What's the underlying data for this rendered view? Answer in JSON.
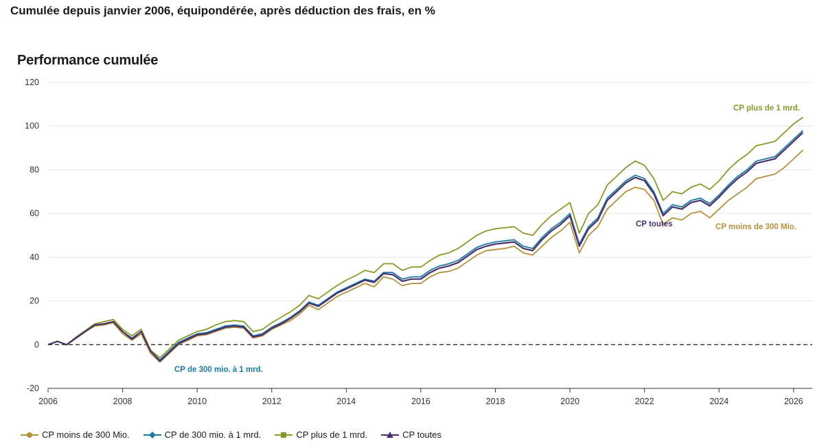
{
  "header": {
    "subtitle": "Cumulée depuis janvier 2006, équipondérée, après déduction des frais, en %",
    "title": "Performance cumulée"
  },
  "chart_data": {
    "type": "line",
    "title": "Performance cumulée",
    "xlim": [
      2006,
      2026.5
    ],
    "ylim": [
      -20,
      120
    ],
    "y_ticks": [
      -20,
      0,
      20,
      40,
      60,
      80,
      100,
      120
    ],
    "x_ticks": [
      2006,
      2008,
      2010,
      2012,
      2014,
      2016,
      2018,
      2020,
      2022,
      2024,
      2026
    ],
    "grid": "horizontal",
    "legend_position": "bottom",
    "x": [
      2006.0,
      2006.25,
      2006.5,
      2006.75,
      2007.0,
      2007.25,
      2007.5,
      2007.75,
      2008.0,
      2008.25,
      2008.5,
      2008.75,
      2009.0,
      2009.25,
      2009.5,
      2009.75,
      2010.0,
      2010.25,
      2010.5,
      2010.75,
      2011.0,
      2011.25,
      2011.5,
      2011.75,
      2012.0,
      2012.25,
      2012.5,
      2012.75,
      2013.0,
      2013.25,
      2013.5,
      2013.75,
      2014.0,
      2014.25,
      2014.5,
      2014.75,
      2015.0,
      2015.25,
      2015.5,
      2015.75,
      2016.0,
      2016.25,
      2016.5,
      2016.75,
      2017.0,
      2017.25,
      2017.5,
      2017.75,
      2018.0,
      2018.25,
      2018.5,
      2018.75,
      2019.0,
      2019.25,
      2019.5,
      2019.75,
      2020.0,
      2020.25,
      2020.5,
      2020.75,
      2021.0,
      2021.25,
      2021.5,
      2021.75,
      2022.0,
      2022.25,
      2022.5,
      2022.75,
      2023.0,
      2023.25,
      2023.5,
      2023.75,
      2024.0,
      2024.25,
      2024.5,
      2024.75,
      2025.0,
      2025.25,
      2025.5,
      2025.75,
      2026.0,
      2026.25
    ],
    "series": [
      {
        "name": "CP moins de 300 Mio.",
        "color": "#b5903a",
        "marker": "circle",
        "values": [
          0,
          1.5,
          0,
          3,
          6,
          8.5,
          9,
          10,
          5,
          2,
          5,
          -4,
          -8,
          -4,
          0,
          2,
          4,
          4.5,
          6,
          7.5,
          8,
          7.5,
          3,
          4,
          7,
          9,
          11,
          14,
          18,
          16,
          19,
          22,
          24,
          26,
          28,
          26.5,
          31,
          30,
          27,
          28,
          28,
          31,
          33,
          33.5,
          35,
          38,
          41,
          43,
          43.5,
          44,
          45,
          42,
          41,
          45,
          49,
          52,
          56,
          42,
          50,
          54,
          62,
          66,
          70,
          72,
          71,
          66,
          55,
          58,
          57,
          60,
          61,
          58,
          62,
          66,
          69,
          72,
          76,
          77,
          78,
          81,
          85,
          89
        ]
      },
      {
        "name": "CP de 300 mio. à 1 mrd.",
        "color": "#1b7aa3",
        "marker": "diamond",
        "values": [
          0,
          1.5,
          0,
          3,
          6,
          9,
          9.5,
          10.5,
          6,
          3,
          6,
          -3,
          -7,
          -3,
          1,
          3,
          5,
          5.5,
          7,
          8.5,
          9,
          8.5,
          4,
          5,
          8,
          10,
          12.5,
          15.5,
          19.5,
          18,
          21,
          24,
          26,
          28,
          30,
          29,
          33,
          33,
          30,
          31,
          31,
          34,
          36,
          37,
          38.5,
          41.5,
          44.5,
          46,
          47,
          47.5,
          48,
          45,
          44,
          49,
          53,
          56,
          60,
          46,
          54,
          58,
          67,
          71,
          75,
          77.5,
          76,
          70,
          60,
          64,
          63,
          66,
          67,
          64.5,
          68.5,
          73,
          77,
          80,
          84,
          85,
          86,
          90,
          94,
          98
        ]
      },
      {
        "name": "CP plus de 1 mrd.",
        "color": "#869a2a",
        "marker": "square",
        "values": [
          0,
          1.5,
          0,
          3.5,
          6.5,
          9.5,
          10.5,
          11.5,
          7,
          4,
          7,
          -2.5,
          -6,
          -2,
          2,
          4,
          6,
          7,
          9,
          10.5,
          11,
          10.5,
          6,
          7,
          10,
          12.5,
          15,
          18,
          22.5,
          21,
          24,
          27,
          29.5,
          31.5,
          34,
          33,
          37,
          37,
          34,
          35.5,
          35.5,
          38.5,
          41,
          42,
          44,
          47,
          50,
          52,
          53,
          53.5,
          54,
          51,
          50,
          55,
          59,
          62,
          65,
          51,
          60,
          64,
          73,
          77,
          81,
          84,
          82,
          76,
          66,
          70,
          69,
          72,
          73.5,
          71,
          75,
          80,
          84,
          87,
          91,
          92,
          93,
          97,
          101,
          104
        ]
      },
      {
        "name": "CP toutes",
        "color": "#4b2f6b",
        "marker": "triangle",
        "values": [
          0,
          1.5,
          0,
          3,
          6,
          9,
          9.5,
          10.5,
          6,
          2.5,
          6,
          -3,
          -7.5,
          -3.5,
          0.5,
          2.5,
          4.5,
          5,
          6.5,
          8,
          8.5,
          8,
          3.5,
          4.5,
          7.5,
          9.5,
          12,
          15,
          19,
          17.5,
          20.5,
          23.5,
          25.5,
          27.5,
          29.5,
          28.5,
          32.5,
          32,
          29,
          30,
          30,
          33,
          35,
          36,
          37.5,
          40.5,
          43.5,
          45,
          46,
          46.5,
          47,
          44,
          43,
          48,
          52,
          55,
          59,
          45,
          53,
          57,
          66,
          70,
          74,
          76.5,
          75,
          69,
          59,
          63,
          62,
          65,
          66,
          63.5,
          67.5,
          72,
          76,
          79,
          83,
          84,
          85,
          89,
          93,
          97
        ]
      }
    ],
    "annotations": [
      {
        "text": "CP plus de 1 mrd.",
        "series": 2
      },
      {
        "text": "CP toutes",
        "series": 3
      },
      {
        "text": "CP moins de 300 Mio.",
        "series": 0
      },
      {
        "text": "CP de 300 mio. à 1 mrd.",
        "series": 1
      }
    ]
  }
}
